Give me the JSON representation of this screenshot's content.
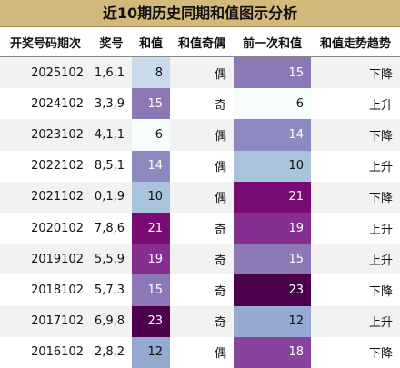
{
  "title": "近10期历史同期和值图示分析",
  "table": {
    "header": [
      "开奖号码期次",
      "奖号",
      "和值",
      "和值奇偶",
      "前一次和值",
      "和值走势趋势"
    ],
    "rows": [
      [
        "2025102",
        "1,6,1",
        8,
        "偶",
        15,
        "下降"
      ],
      [
        "2024102",
        "3,3,9",
        15,
        "奇",
        6,
        "上升"
      ],
      [
        "2023102",
        "4,1,1",
        6,
        "偶",
        14,
        "下降"
      ],
      [
        "2022102",
        "8,5,1",
        14,
        "偶",
        10,
        "上升"
      ],
      [
        "2021102",
        "0,1,9",
        10,
        "偶",
        21,
        "下降"
      ],
      [
        "2020102",
        "7,8,6",
        21,
        "奇",
        19,
        "上升"
      ],
      [
        "2019102",
        "5,5,9",
        19,
        "奇",
        15,
        "上升"
      ],
      [
        "2018102",
        "5,7,3",
        15,
        "奇",
        23,
        "下降"
      ],
      [
        "2017102",
        "6,9,8",
        23,
        "奇",
        12,
        "上升"
      ],
      [
        "2016102",
        "2,8,2",
        12,
        "偶",
        18,
        "下降"
      ]
    ]
  }
}
